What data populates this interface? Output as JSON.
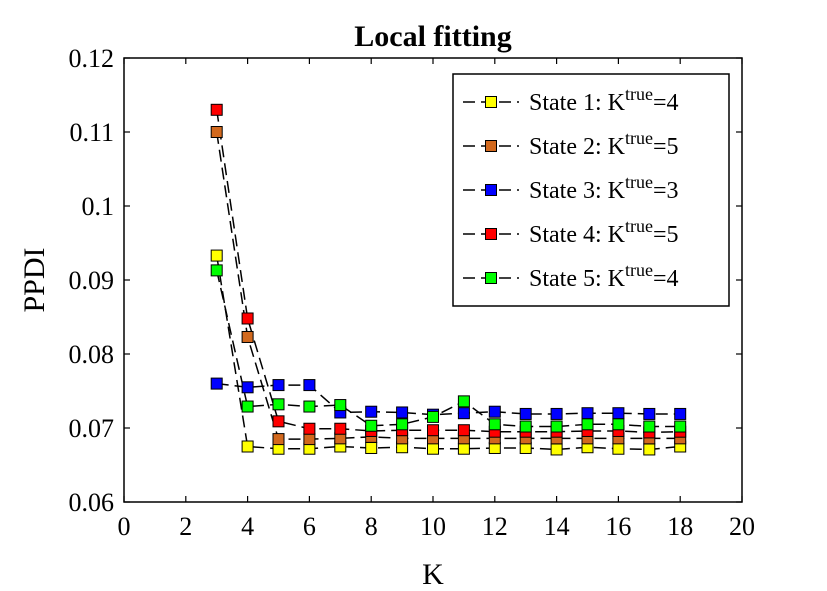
{
  "chart_data": {
    "type": "line",
    "title": "Local fitting",
    "xlabel": "K",
    "ylabel": "PPDI",
    "xlim": [
      0,
      20
    ],
    "ylim": [
      0.06,
      0.12
    ],
    "xticks": [
      0,
      2,
      4,
      6,
      8,
      10,
      12,
      14,
      16,
      18,
      20
    ],
    "yticks": [
      0.06,
      0.07,
      0.08,
      0.09,
      0.1,
      0.11,
      0.12
    ],
    "xtick_labels": [
      "0",
      "2",
      "4",
      "6",
      "8",
      "10",
      "12",
      "14",
      "16",
      "18",
      "20"
    ],
    "ytick_labels": [
      "0.06",
      "0.07",
      "0.08",
      "0.09",
      "0.1",
      "0.11",
      "0.12"
    ],
    "grid": false,
    "legend_position": "top-right",
    "line_style": "dashed",
    "x": [
      3,
      4,
      5,
      6,
      7,
      8,
      9,
      10,
      11,
      12,
      13,
      14,
      15,
      16,
      17,
      18
    ],
    "series": [
      {
        "name": "State 1: K",
        "superscript": "true",
        "suffix": "=4",
        "color": "#ffff00",
        "values": [
          0.0933,
          0.0675,
          0.0672,
          0.0672,
          0.0675,
          0.0673,
          0.0674,
          0.0672,
          0.0672,
          0.0673,
          0.0673,
          0.0671,
          0.0674,
          0.0672,
          0.0671,
          0.0675
        ]
      },
      {
        "name": "State 2: K",
        "superscript": "true",
        "suffix": "=5",
        "color": "#d2691e",
        "values": [
          0.11,
          0.0823,
          0.0685,
          0.0685,
          0.0686,
          0.0688,
          0.0686,
          0.0686,
          0.0686,
          0.0686,
          0.0686,
          0.0686,
          0.0686,
          0.0686,
          0.0686,
          0.0686
        ]
      },
      {
        "name": "State 3: K",
        "superscript": "true",
        "suffix": "=3",
        "color": "#0000ff",
        "values": [
          0.076,
          0.0755,
          0.0758,
          0.0758,
          0.0721,
          0.0722,
          0.0721,
          0.0718,
          0.072,
          0.0722,
          0.0719,
          0.0719,
          0.072,
          0.072,
          0.0719,
          0.0719
        ]
      },
      {
        "name": "State 4: K",
        "superscript": "true",
        "suffix": "=5",
        "color": "#ff0000",
        "values": [
          0.113,
          0.0848,
          0.0709,
          0.0699,
          0.0699,
          0.0696,
          0.0697,
          0.0697,
          0.0697,
          0.0695,
          0.0695,
          0.0695,
          0.0696,
          0.0696,
          0.0694,
          0.0695
        ]
      },
      {
        "name": "State 5: K",
        "superscript": "true",
        "suffix": "=4",
        "color": "#00ff00",
        "values": [
          0.0913,
          0.0729,
          0.0732,
          0.0729,
          0.0731,
          0.0703,
          0.0705,
          0.0715,
          0.0736,
          0.0705,
          0.0702,
          0.0702,
          0.0705,
          0.0705,
          0.0702,
          0.0702
        ]
      }
    ]
  }
}
